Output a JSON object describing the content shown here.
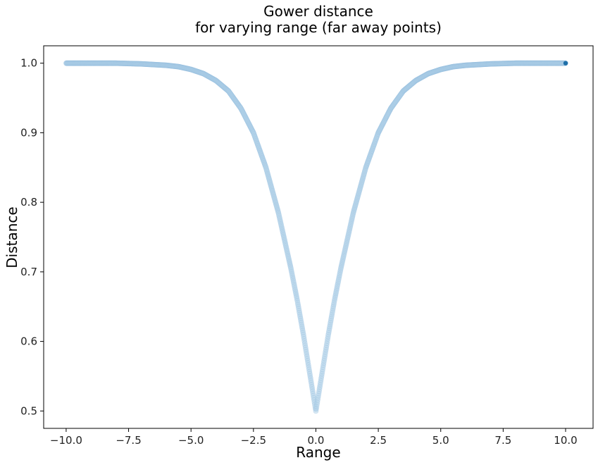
{
  "chart_data": {
    "type": "scatter",
    "title_lines": [
      "Gower distance",
      "for varying range (far away points)"
    ],
    "xlabel": "Range",
    "ylabel": "Distance",
    "xlim": [
      -10.9,
      11.1
    ],
    "ylim": [
      0.475,
      1.025
    ],
    "x_ticks": [
      -10.0,
      -7.5,
      -5.0,
      -2.5,
      0.0,
      2.5,
      5.0,
      7.5,
      10.0
    ],
    "x_tick_labels": [
      "−10.0",
      "−7.5",
      "−5.0",
      "−2.5",
      "0.0",
      "2.5",
      "5.0",
      "7.5",
      "10.0"
    ],
    "y_ticks": [
      0.5,
      0.6,
      0.7,
      0.8,
      0.9,
      1.0
    ],
    "y_tick_labels": [
      "0.5",
      "0.6",
      "0.7",
      "0.8",
      "0.9",
      "1.0"
    ],
    "grid": false,
    "legend": "none",
    "x_range": [
      -10.0,
      10.0
    ],
    "points": [
      [
        -10.0,
        1.0
      ],
      [
        -9.0,
        1.0
      ],
      [
        -8.0,
        1.0
      ],
      [
        -7.5,
        0.9995
      ],
      [
        -7.0,
        0.999
      ],
      [
        -6.5,
        0.998
      ],
      [
        -6.0,
        0.997
      ],
      [
        -5.5,
        0.995
      ],
      [
        -5.0,
        0.991
      ],
      [
        -4.5,
        0.985
      ],
      [
        -4.0,
        0.975
      ],
      [
        -3.5,
        0.96
      ],
      [
        -3.0,
        0.935
      ],
      [
        -2.5,
        0.9
      ],
      [
        -2.0,
        0.85
      ],
      [
        -1.5,
        0.785
      ],
      [
        -1.0,
        0.705
      ],
      [
        -0.75,
        0.66
      ],
      [
        -0.5,
        0.61
      ],
      [
        -0.25,
        0.555
      ],
      [
        0.0,
        0.5
      ],
      [
        0.25,
        0.555
      ],
      [
        0.5,
        0.61
      ],
      [
        0.75,
        0.66
      ],
      [
        1.0,
        0.705
      ],
      [
        1.5,
        0.785
      ],
      [
        2.0,
        0.85
      ],
      [
        2.5,
        0.9
      ],
      [
        3.0,
        0.935
      ],
      [
        3.5,
        0.96
      ],
      [
        4.0,
        0.975
      ],
      [
        4.5,
        0.985
      ],
      [
        5.0,
        0.991
      ],
      [
        5.5,
        0.995
      ],
      [
        6.0,
        0.997
      ],
      [
        6.5,
        0.998
      ],
      [
        7.0,
        0.999
      ],
      [
        7.5,
        0.9995
      ],
      [
        8.0,
        1.0
      ],
      [
        9.0,
        1.0
      ],
      [
        10.0,
        1.0
      ]
    ],
    "colors": {
      "point_fill": "#b5d3ea",
      "point_edge": "#8fb9dc",
      "highlight_point": "#1f6fa8",
      "axis": "#000000"
    }
  }
}
